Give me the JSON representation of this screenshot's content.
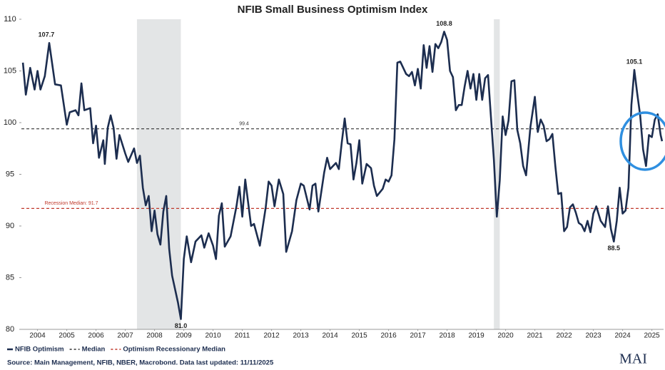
{
  "chart_data": {
    "type": "line",
    "title": "NFIB Small Business Optimism Index",
    "x": [
      2004.0,
      2004.1,
      2004.25,
      2004.4,
      2004.5,
      2004.6,
      2004.75,
      2004.9,
      2005.1,
      2005.3,
      2005.5,
      2005.6,
      2005.8,
      2005.9,
      2006.0,
      2006.1,
      2006.3,
      2006.4,
      2006.5,
      2006.6,
      2006.75,
      2006.8,
      2006.9,
      2007.0,
      2007.1,
      2007.2,
      2007.3,
      2007.5,
      2007.6,
      2007.8,
      2007.9,
      2008.0,
      2008.1,
      2008.2,
      2008.3,
      2008.4,
      2008.5,
      2008.6,
      2008.7,
      2008.8,
      2008.9,
      2009.0,
      2009.1,
      2009.3,
      2009.4,
      2009.5,
      2009.6,
      2009.75,
      2009.9,
      2010.1,
      2010.2,
      2010.35,
      2010.5,
      2010.6,
      2010.7,
      2010.8,
      2010.9,
      2011.1,
      2011.3,
      2011.4,
      2011.5,
      2011.6,
      2011.8,
      2011.9,
      2012.1,
      2012.3,
      2012.4,
      2012.5,
      2012.6,
      2012.75,
      2012.9,
      2013.0,
      2013.2,
      2013.35,
      2013.5,
      2013.6,
      2013.8,
      2013.9,
      2014.0,
      2014.1,
      2014.3,
      2014.4,
      2014.5,
      2014.7,
      2014.8,
      2014.9,
      2015.0,
      2015.1,
      2015.2,
      2015.3,
      2015.4,
      2015.5,
      2015.6,
      2015.75,
      2015.9,
      2016.0,
      2016.1,
      2016.3,
      2016.4,
      2016.5,
      2016.6,
      2016.7,
      2016.8,
      2016.9,
      2017.1,
      2017.2,
      2017.3,
      2017.4,
      2017.5,
      2017.6,
      2017.7,
      2017.8,
      2017.9,
      2018.0,
      2018.1,
      2018.2,
      2018.3,
      2018.4,
      2018.5,
      2018.6,
      2018.7,
      2018.8,
      2018.9,
      2019.0,
      2019.1,
      2019.2,
      2019.3,
      2019.4,
      2019.5,
      2019.6,
      2019.7,
      2019.8,
      2019.9,
      2020.1,
      2020.2,
      2020.3,
      2020.4,
      2020.5,
      2020.6,
      2020.7,
      2020.8,
      2020.9,
      2021.0,
      2021.1,
      2021.2,
      2021.35,
      2021.5,
      2021.6,
      2021.7,
      2021.8,
      2021.9,
      2022.0,
      2022.1,
      2022.2,
      2022.3,
      2022.4,
      2022.5,
      2022.6,
      2022.7,
      2022.8,
      2022.9,
      2023.0,
      2023.1,
      2023.2,
      2023.3,
      2023.4,
      2023.5,
      2023.6,
      2023.75,
      2023.9,
      2024.0,
      2024.1,
      2024.2,
      2024.3,
      2024.4,
      2024.5,
      2024.6,
      2024.7,
      2024.8,
      2024.9,
      2025.0,
      2025.1,
      2025.2,
      2025.3,
      2025.4,
      2025.5,
      2025.6,
      2025.7,
      2025.8,
      2025.85
    ],
    "series": [
      {
        "name": "NFIB Optimism",
        "color": "#1c2d4f",
        "values": [
          105.8,
          102.7,
          105.3,
          103.2,
          105.0,
          103.2,
          104.5,
          107.7,
          103.7,
          103.6,
          99.8,
          101.0,
          101.2,
          100.7,
          103.8,
          101.2,
          101.4,
          98.0,
          99.7,
          96.6,
          98.3,
          96.0,
          99.5,
          100.7,
          99.5,
          96.5,
          98.8,
          97.0,
          96.2,
          97.5,
          96.1,
          96.8,
          93.7,
          92.0,
          92.9,
          89.5,
          91.5,
          89.2,
          88.2,
          91.4,
          92.9,
          87.8,
          85.2,
          82.6,
          81.0,
          86.8,
          89.0,
          86.5,
          88.5,
          89.1,
          87.9,
          89.3,
          88.1,
          86.8,
          91.0,
          92.2,
          88.0,
          89.0,
          91.9,
          93.8,
          90.9,
          94.5,
          90.0,
          90.2,
          88.1,
          91.8,
          94.3,
          93.9,
          91.9,
          94.5,
          93.1,
          87.5,
          89.5,
          92.5,
          94.1,
          93.9,
          91.6,
          93.9,
          94.1,
          91.4,
          95.2,
          96.6,
          95.5,
          96.1,
          95.5,
          98.1,
          100.4,
          98.0,
          97.9,
          94.5,
          96.1,
          98.3,
          94.1,
          96.0,
          95.6,
          93.9,
          92.9,
          93.6,
          94.5,
          94.3,
          94.9,
          98.4,
          105.8,
          105.9,
          104.7,
          104.5,
          104.9,
          103.6,
          105.2,
          103.3,
          107.5,
          105.3,
          107.4,
          104.9,
          107.6,
          107.2,
          107.8,
          108.8,
          108.0,
          105.0,
          104.4,
          101.2,
          101.7,
          101.7,
          103.5,
          105.0,
          103.3,
          104.7,
          102.2,
          104.7,
          102.2,
          104.3,
          104.6,
          96.4,
          90.9,
          94.4,
          100.6,
          98.8,
          100.2,
          104.0,
          104.1,
          99.3,
          98.0,
          95.8,
          94.9,
          99.6,
          102.5,
          99.1,
          100.3,
          99.7,
          98.2,
          98.4,
          98.9,
          95.8,
          93.1,
          93.2,
          89.5,
          89.9,
          91.8,
          92.1,
          91.3,
          90.3,
          90.1,
          89.5,
          90.5,
          89.4,
          91.2,
          91.9,
          90.5,
          89.9,
          91.9,
          89.7,
          88.5,
          90.5,
          93.7,
          91.2,
          91.5,
          93.7,
          101.7,
          105.1,
          102.8,
          100.7,
          97.4,
          95.8,
          98.8,
          98.6,
          100.3,
          100.8,
          98.8,
          98.2
        ]
      }
    ],
    "xlim": [
      2003.95,
      2025.9
    ],
    "xticks": [
      {
        "value": 2004.5,
        "label": "2004"
      },
      {
        "value": 2005.5,
        "label": "2005"
      },
      {
        "value": 2006.5,
        "label": "2006"
      },
      {
        "value": 2007.5,
        "label": "2007"
      },
      {
        "value": 2008.5,
        "label": "2008"
      },
      {
        "value": 2009.5,
        "label": "2009"
      },
      {
        "value": 2010.5,
        "label": "2010"
      },
      {
        "value": 2011.5,
        "label": "2011"
      },
      {
        "value": 2012.5,
        "label": "2012"
      },
      {
        "value": 2013.5,
        "label": "2013"
      },
      {
        "value": 2014.5,
        "label": "2014"
      },
      {
        "value": 2015.5,
        "label": "2015"
      },
      {
        "value": 2016.5,
        "label": "2016"
      },
      {
        "value": 2017.5,
        "label": "2017"
      },
      {
        "value": 2018.5,
        "label": "2018"
      },
      {
        "value": 2019.5,
        "label": "2019"
      },
      {
        "value": 2020.5,
        "label": "2020"
      },
      {
        "value": 2021.5,
        "label": "2021"
      },
      {
        "value": 2022.5,
        "label": "2022"
      },
      {
        "value": 2023.5,
        "label": "2023"
      },
      {
        "value": 2024.5,
        "label": "2024"
      },
      {
        "value": 2025.5,
        "label": "2025"
      }
    ],
    "ylim": [
      80,
      110
    ],
    "yticks": [
      80,
      85,
      90,
      95,
      100,
      105,
      110
    ],
    "shaded_ranges": [
      [
        2007.9,
        2009.4
      ],
      [
        2020.1,
        2020.3
      ]
    ],
    "hlines": [
      {
        "name": "Median",
        "value": 99.4,
        "label": "99.4",
        "color": "#333333"
      },
      {
        "name": "Optimism Recessionary Median",
        "value": 91.7,
        "label": "Recession Median: 91.7",
        "color": "#c0392b"
      }
    ],
    "annotations": [
      {
        "text": "107.7",
        "x": 2004.9,
        "y": 107.7
      },
      {
        "text": "81.0",
        "x": 2009.4,
        "y": 81.0
      },
      {
        "text": "108.8",
        "x": 2018.4,
        "y": 108.8
      },
      {
        "text": "105.1",
        "x": 2024.9,
        "y": 105.1
      },
      {
        "text": "88.5",
        "x": 2024.2,
        "y": 88.5
      }
    ],
    "source": "Source: Main Management, NFIB, NBER, Macrobond. Data last updated: 11/11/2025",
    "logo": "MAI"
  }
}
